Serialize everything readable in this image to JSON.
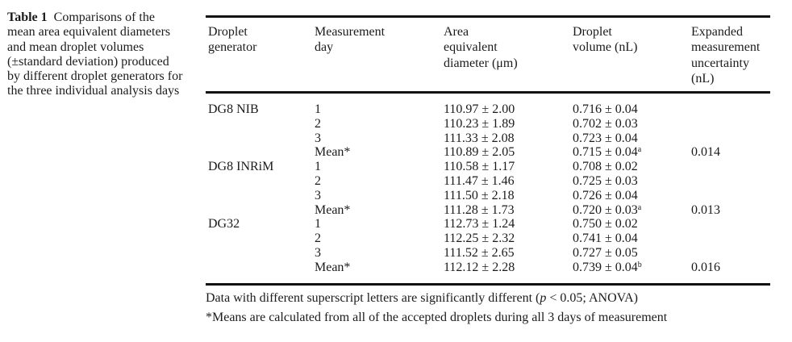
{
  "caption": {
    "label": "Table 1",
    "first_line": "Comparisons of the",
    "rest": "mean area equivalent diameters\nand mean droplet volumes\n(±standard deviation) produced\nby different droplet generators for\nthe three individual analysis days"
  },
  "table": {
    "headers": [
      "Droplet\ngenerator",
      "Measurement\nday",
      "Area\nequivalent\ndiameter (μm)",
      "Droplet\nvolume (nL)",
      "Expanded\nmeasurement\nuncertainty\n(nL)"
    ],
    "rows": [
      {
        "generator": "DG8 NIB",
        "day": "1",
        "diameter": "110.97 ± 2.00",
        "volume": "0.716 ± 0.04",
        "volume_sup": "",
        "uncertainty": ""
      },
      {
        "generator": "",
        "day": "2",
        "diameter": "110.23 ± 1.89",
        "volume": "0.702 ± 0.03",
        "volume_sup": "",
        "uncertainty": ""
      },
      {
        "generator": "",
        "day": "3",
        "diameter": "111.33 ± 2.08",
        "volume": "0.723 ± 0.04",
        "volume_sup": "",
        "uncertainty": ""
      },
      {
        "generator": "",
        "day": "Mean*",
        "diameter": "110.89 ± 2.05",
        "volume": "0.715 ± 0.04",
        "volume_sup": "a",
        "uncertainty": "0.014"
      },
      {
        "generator": "DG8 INRiM",
        "day": "1",
        "diameter": "110.58 ± 1.17",
        "volume": "0.708 ± 0.02",
        "volume_sup": "",
        "uncertainty": ""
      },
      {
        "generator": "",
        "day": "2",
        "diameter": "111.47 ± 1.46",
        "volume": "0.725 ± 0.03",
        "volume_sup": "",
        "uncertainty": ""
      },
      {
        "generator": "",
        "day": "3",
        "diameter": "111.50 ± 2.18",
        "volume": "0.726 ± 0.04",
        "volume_sup": "",
        "uncertainty": ""
      },
      {
        "generator": "",
        "day": "Mean*",
        "diameter": "111.28 ± 1.73",
        "volume": "0.720 ± 0.03",
        "volume_sup": "a",
        "uncertainty": "0.013"
      },
      {
        "generator": "DG32",
        "day": "1",
        "diameter": "112.73 ± 1.24",
        "volume": "0.750 ± 0.02",
        "volume_sup": "",
        "uncertainty": ""
      },
      {
        "generator": "",
        "day": "2",
        "diameter": "112.25 ± 2.32",
        "volume": "0.741 ± 0.04",
        "volume_sup": "",
        "uncertainty": ""
      },
      {
        "generator": "",
        "day": "3",
        "diameter": "111.52 ± 2.65",
        "volume": "0.727 ± 0.05",
        "volume_sup": "",
        "uncertainty": ""
      },
      {
        "generator": "",
        "day": "Mean*",
        "diameter": "112.12 ± 2.28",
        "volume": "0.739 ± 0.04",
        "volume_sup": "b",
        "uncertainty": "0.016"
      }
    ]
  },
  "footnotes": {
    "line1_pre": "Data with different superscript letters are significantly different (",
    "line1_italic": "p",
    "line1_post": " < 0.05; ANOVA)",
    "line2": "*Means are calculated from all of the accepted droplets during all 3 days of measurement"
  }
}
